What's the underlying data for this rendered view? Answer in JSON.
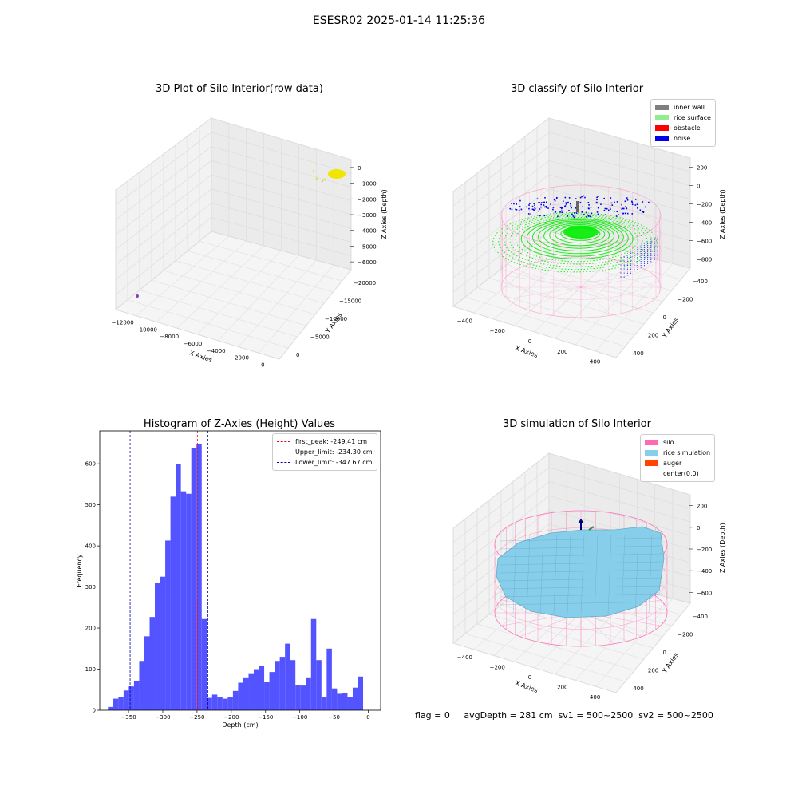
{
  "suptitle": "ESESR02 2025-01-14 11:25:36",
  "status_line": {
    "flag": "flag = 0",
    "avg_depth": "avgDepth = 281 cm",
    "sv1": "sv1 = 500~2500",
    "sv2": "sv2 = 500~2500"
  },
  "colors": {
    "raw_points": "#f2e600",
    "inner_wall": "#808080",
    "rice_surface": "#90ee90",
    "rice_points": "#00ee00",
    "obstacle": "#ff0000",
    "noise": "#0000ee",
    "silo": "#ff69b4",
    "rice_simulation": "#87ceeb",
    "auger": "#ff4500",
    "histogram_bars": "#4a4aff",
    "first_peak_line": "#ff0000",
    "limit_lines": "#0000aa"
  },
  "chart_data": [
    {
      "id": "raw",
      "type": "scatter",
      "title": "3D Plot of Silo Interior(row data)",
      "xlabel": "X Axies",
      "ylabel": "Y Axies",
      "zlabel": "Z Axies (Depth)",
      "x_ticks": [
        "−12000",
        "−10000",
        "−8000",
        "−6000",
        "−4000",
        "−2000",
        "0"
      ],
      "y_ticks": [
        "0",
        "−5000",
        "−10000",
        "−15000",
        "−20000"
      ],
      "z_ticks": [
        "0",
        "−1000",
        "−2000",
        "−3000",
        "−4000",
        "−5000",
        "−6000"
      ]
    },
    {
      "id": "classify",
      "type": "scatter",
      "title": "3D classify of Silo Interior",
      "xlabel": "X Axies",
      "ylabel": "Y Axies",
      "zlabel": "Z Axies (Depth)",
      "x_ticks": [
        "−400",
        "−200",
        "0",
        "200",
        "400"
      ],
      "y_ticks": [
        "400",
        "200",
        "0",
        "−200",
        "−400"
      ],
      "z_ticks": [
        "200",
        "0",
        "−200",
        "−400",
        "−600",
        "−800"
      ],
      "legend": [
        "inner wall",
        "rice surface",
        "obstacle",
        "noise"
      ]
    },
    {
      "id": "histogram",
      "type": "bar",
      "title": "Histogram of Z-Axies (Height) Values",
      "xlabel": "Depth (cm)",
      "ylabel": "Frequency",
      "xlim": [
        -392,
        18
      ],
      "ylim": [
        0,
        680
      ],
      "x_ticks": [
        -350,
        -300,
        -250,
        -200,
        -150,
        -100,
        -50,
        0
      ],
      "y_ticks": [
        0,
        100,
        200,
        300,
        400,
        500,
        600
      ],
      "bin_start": -380,
      "bin_width": 7.6,
      "values": [
        8,
        28,
        32,
        48,
        58,
        72,
        120,
        180,
        227,
        310,
        325,
        413,
        520,
        600,
        533,
        527,
        638,
        648,
        222,
        30,
        38,
        32,
        28,
        32,
        47,
        67,
        80,
        90,
        100,
        107,
        68,
        93,
        120,
        130,
        162,
        122,
        62,
        60,
        80,
        222,
        122,
        33,
        150,
        53,
        40,
        42,
        32,
        55,
        82
      ],
      "reference_lines": [
        {
          "label": "first_peak: -249.41 cm",
          "x": -249.41,
          "kind": "first_peak"
        },
        {
          "label": "Upper_limit: -234.30 cm",
          "x": -234.3,
          "kind": "limit"
        },
        {
          "label": "Lower_limit: -347.67 cm",
          "x": -347.67,
          "kind": "limit"
        }
      ],
      "legend_placement": "top-right"
    },
    {
      "id": "simulation",
      "type": "area",
      "title": "3D simulation of Silo Interior",
      "xlabel": "X Axies",
      "ylabel": "Y Axies",
      "zlabel": "Z Axies (Depth)",
      "x_ticks": [
        "−400",
        "−200",
        "0",
        "200",
        "400"
      ],
      "y_ticks": [
        "400",
        "200",
        "0",
        "−200",
        "−400"
      ],
      "z_ticks": [
        "200",
        "0",
        "−200",
        "−400",
        "−600"
      ],
      "legend": [
        "silo",
        "rice simulation",
        "auger",
        "center(0,0)"
      ]
    }
  ]
}
